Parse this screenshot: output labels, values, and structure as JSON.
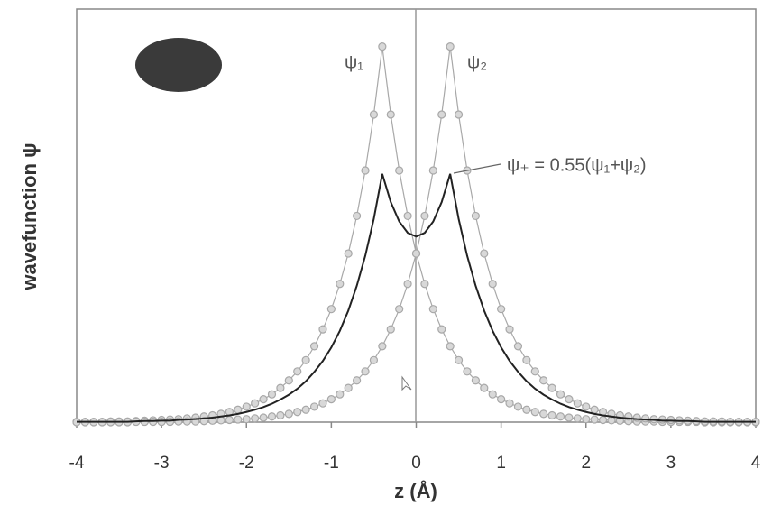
{
  "chart_data": {
    "type": "line",
    "x_label": "z (Å)",
    "y_label": "wavefunction ψ",
    "x": [
      -4.0,
      -3.9,
      -3.8,
      -3.7,
      -3.6,
      -3.5,
      -3.4,
      -3.3,
      -3.2,
      -3.1,
      -3.0,
      -2.9,
      -2.8,
      -2.7,
      -2.6,
      -2.5,
      -2.4,
      -2.3,
      -2.2,
      -2.1,
      -2.0,
      -1.9,
      -1.8,
      -1.7,
      -1.6,
      -1.5,
      -1.4,
      -1.3,
      -1.2,
      -1.1,
      -1.0,
      -0.9,
      -0.8,
      -0.7,
      -0.6,
      -0.5,
      -0.4,
      -0.3,
      -0.2,
      -0.1,
      0.0,
      0.1,
      0.2,
      0.3,
      0.4,
      0.5,
      0.6,
      0.7,
      0.8,
      0.9,
      1.0,
      1.1,
      1.2,
      1.3,
      1.4,
      1.5,
      1.6,
      1.7,
      1.8,
      1.9,
      2.0,
      2.1,
      2.2,
      2.3,
      2.4,
      2.5,
      2.6,
      2.7,
      2.8,
      2.9,
      3.0,
      3.1,
      3.2,
      3.3,
      3.4,
      3.5,
      3.6,
      3.7,
      3.8,
      3.9,
      4.0
    ],
    "series": [
      {
        "name": "ψ₁",
        "color": "#a8a8a8",
        "marker": "circle",
        "values": [
          0.001,
          0.001,
          0.001,
          0.001,
          0.002,
          0.002,
          0.002,
          0.003,
          0.004,
          0.005,
          0.006,
          0.007,
          0.008,
          0.01,
          0.012,
          0.015,
          0.018,
          0.022,
          0.027,
          0.033,
          0.041,
          0.05,
          0.061,
          0.074,
          0.091,
          0.111,
          0.135,
          0.165,
          0.202,
          0.247,
          0.301,
          0.368,
          0.449,
          0.549,
          0.67,
          0.819,
          1,
          0.819,
          0.67,
          0.549,
          0.449,
          0.368,
          0.301,
          0.247,
          0.202,
          0.165,
          0.135,
          0.111,
          0.091,
          0.074,
          0.061,
          0.05,
          0.041,
          0.033,
          0.027,
          0.022,
          0.018,
          0.015,
          0.012,
          0.01,
          0.008,
          0.007,
          0.006,
          0.005,
          0.004,
          0.003,
          0.002,
          0.002,
          0.002,
          0.001,
          0.001,
          0.001,
          0.001,
          0.001,
          0,
          0,
          0,
          0,
          0,
          0,
          0
        ]
      },
      {
        "name": "ψ₂",
        "color": "#a8a8a8",
        "marker": "circle",
        "values": [
          0,
          0,
          0,
          0,
          0,
          0,
          0,
          0.001,
          0.001,
          0.001,
          0.001,
          0.001,
          0.002,
          0.002,
          0.002,
          0.003,
          0.004,
          0.005,
          0.006,
          0.007,
          0.008,
          0.01,
          0.012,
          0.015,
          0.018,
          0.022,
          0.027,
          0.033,
          0.041,
          0.05,
          0.061,
          0.074,
          0.091,
          0.111,
          0.135,
          0.165,
          0.202,
          0.247,
          0.301,
          0.368,
          0.449,
          0.549,
          0.67,
          0.819,
          1,
          0.819,
          0.67,
          0.549,
          0.449,
          0.368,
          0.301,
          0.247,
          0.202,
          0.165,
          0.135,
          0.111,
          0.091,
          0.074,
          0.061,
          0.05,
          0.041,
          0.033,
          0.027,
          0.022,
          0.018,
          0.015,
          0.012,
          0.01,
          0.008,
          0.007,
          0.006,
          0.005,
          0.004,
          0.003,
          0.002,
          0.002,
          0.002,
          0.001,
          0.001,
          0.001,
          0.001
        ]
      },
      {
        "name": "ψ₊ = 0.55(ψ₁+ψ₂)",
        "color": "#222222",
        "marker": "none",
        "values": [
          0.001,
          0.001,
          0.001,
          0.001,
          0.001,
          0.001,
          0.001,
          0.002,
          0.003,
          0.003,
          0.004,
          0.004,
          0.006,
          0.007,
          0.008,
          0.01,
          0.012,
          0.015,
          0.018,
          0.022,
          0.027,
          0.033,
          0.04,
          0.049,
          0.06,
          0.073,
          0.089,
          0.109,
          0.134,
          0.163,
          0.199,
          0.243,
          0.297,
          0.363,
          0.443,
          0.541,
          0.661,
          0.586,
          0.534,
          0.504,
          0.494,
          0.504,
          0.534,
          0.586,
          0.661,
          0.541,
          0.443,
          0.363,
          0.297,
          0.243,
          0.199,
          0.163,
          0.134,
          0.109,
          0.089,
          0.073,
          0.06,
          0.049,
          0.04,
          0.033,
          0.027,
          0.022,
          0.018,
          0.015,
          0.012,
          0.01,
          0.008,
          0.007,
          0.006,
          0.004,
          0.004,
          0.003,
          0.003,
          0.002,
          0.001,
          0.001,
          0.001,
          0.001,
          0.001,
          0.001,
          0.001
        ]
      }
    ],
    "xlim": [
      -4,
      4
    ],
    "xticks": [
      -4,
      -3,
      -2,
      -1,
      0,
      1,
      2,
      3,
      4
    ],
    "ylim": [
      0,
      1.1
    ]
  }
}
